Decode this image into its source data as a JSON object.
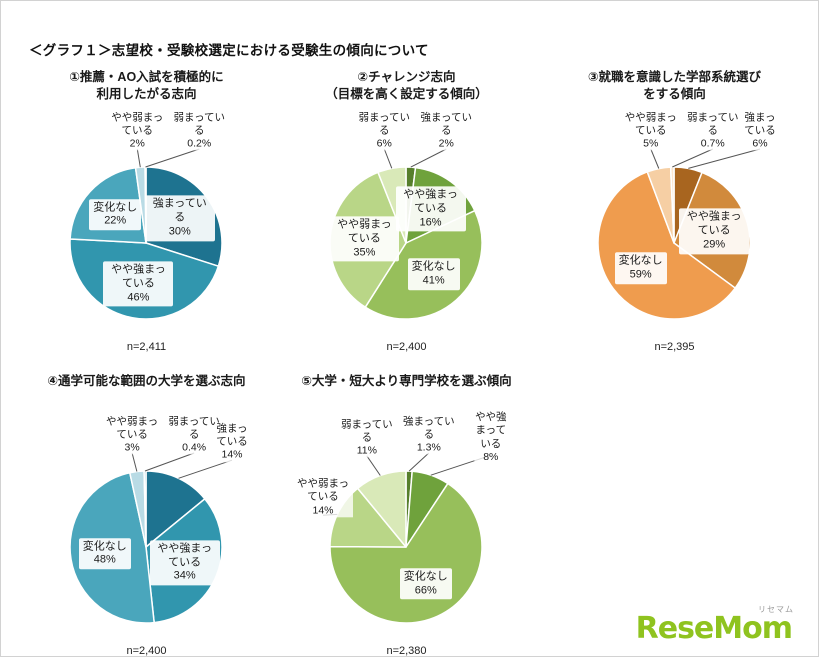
{
  "page": {
    "title": "＜グラフ１＞志望校・受験校選定における受験生の傾向について",
    "logo": {
      "text": "ReseMom",
      "ruby": "リセマム",
      "color": "#8fc31f"
    }
  },
  "palettes": {
    "teal": [
      "#1e7390",
      "#3196ae",
      "#4aa6bc",
      "#b9dbe5",
      "#8ecbdb"
    ],
    "green": [
      "#567f2b",
      "#6fa23c",
      "#97bf5b",
      "#b9d687",
      "#d9e9b8"
    ],
    "orange": [
      "#a8651f",
      "#d18a3c",
      "#ef9c4e",
      "#f6cfa4",
      "#fbe6cf"
    ]
  },
  "chart_data": [
    {
      "type": "pie",
      "title_lines": [
        "①推薦・AO入試を積極的に",
        "利用したがる志向"
      ],
      "n_label": "n=2,411",
      "palette": "teal",
      "legend_position": "none",
      "slices": [
        {
          "label": "強まっている",
          "value": 30
        },
        {
          "label": "やや強まっている",
          "value": 46
        },
        {
          "label": "変化なし",
          "value": 22
        },
        {
          "label": "やや弱まっている",
          "value": 2
        },
        {
          "label": "弱まっている",
          "value": 0.2
        }
      ]
    },
    {
      "type": "pie",
      "title_lines": [
        "②チャレンジ志向",
        "（目標を高く設定する傾向）"
      ],
      "n_label": "n=2,400",
      "palette": "green",
      "legend_position": "none",
      "slices": [
        {
          "label": "強まっている",
          "value": 2
        },
        {
          "label": "やや強まっている",
          "value": 16
        },
        {
          "label": "変化なし",
          "value": 41
        },
        {
          "label": "やや弱まっている",
          "value": 35
        },
        {
          "label": "弱まっている",
          "value": 6
        }
      ]
    },
    {
      "type": "pie",
      "title_lines": [
        "③就職を意識した学部系統選び",
        "をする傾向"
      ],
      "n_label": "n=2,395",
      "palette": "orange",
      "legend_position": "none",
      "slices": [
        {
          "label": "強まっている",
          "value": 6
        },
        {
          "label": "やや強まっている",
          "value": 29
        },
        {
          "label": "変化なし",
          "value": 59
        },
        {
          "label": "やや弱まっている",
          "value": 5
        },
        {
          "label": "弱まっている",
          "value": 0.7
        }
      ]
    },
    {
      "type": "pie",
      "title_lines": [
        "④通学可能な範囲の大学を選ぶ志向"
      ],
      "n_label": "n=2,400",
      "palette": "teal",
      "legend_position": "none",
      "slices": [
        {
          "label": "強まっている",
          "value": 14
        },
        {
          "label": "やや強まっている",
          "value": 34
        },
        {
          "label": "変化なし",
          "value": 48
        },
        {
          "label": "やや弱まっている",
          "value": 3
        },
        {
          "label": "弱まっている",
          "value": 0.4
        }
      ]
    },
    {
      "type": "pie",
      "title_lines": [
        "⑤大学・短大より専門学校を選ぶ傾向"
      ],
      "n_label": "n=2,380",
      "palette": "green",
      "legend_position": "none",
      "slices": [
        {
          "label": "強まっている",
          "value": 1.3
        },
        {
          "label": "やや強まっている",
          "value": 8
        },
        {
          "label": "変化なし",
          "value": 66
        },
        {
          "label": "やや弱まっている",
          "value": 14
        },
        {
          "label": "弱まっている",
          "value": 11
        }
      ]
    }
  ]
}
